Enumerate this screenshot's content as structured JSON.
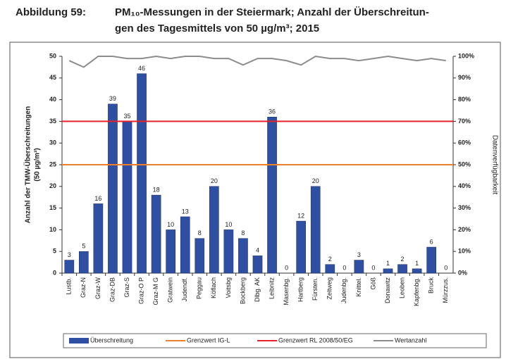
{
  "chart_data": {
    "type": "bar",
    "figure_label": "Abbildung 59:",
    "title": [
      "PM₁₀-Messungen in der Steiermark; Anzahl der Überschreitun-",
      "gen des Tagesmittels von 50 µg/m³; 2015"
    ],
    "ylabel": [
      "Anzahl der TMW-Überschreitungen",
      "(50 µg/m³)"
    ],
    "y2label": "Datenverfügbarkeit",
    "categories": [
      "Lustb.",
      "Graz-N",
      "Graz-W",
      "Graz-DB",
      "Graz-S",
      "Graz-O P",
      "Graz-M G",
      "Gratwein",
      "Judendf.",
      "Peggau",
      "Köflach",
      "Voitsbg",
      "Bockberg",
      "Dlbg. AK",
      "Leibnitz",
      "Masenbg.",
      "Hartberg",
      "Fürsten.",
      "Zeltweg",
      "Judenbg.",
      "Knittel.",
      "Göß",
      "Donawitz",
      "Leoben",
      "Kapfenbg.",
      "Bruck",
      "Mürzzus."
    ],
    "series": [
      {
        "name": "Überschreitung",
        "color": "#2f4fa2",
        "values": [
          3,
          5,
          16,
          39,
          35,
          46,
          18,
          10,
          13,
          8,
          20,
          10,
          8,
          4,
          36,
          0,
          12,
          20,
          2,
          0,
          3,
          0,
          1,
          2,
          1,
          6,
          0
        ]
      },
      {
        "name": "Wertanzahl",
        "color": "#8c8c8c",
        "axis": "y2",
        "values": [
          98,
          95,
          100,
          100,
          99,
          99,
          100,
          99,
          100,
          100,
          99,
          99,
          96,
          99,
          99,
          98,
          96,
          100,
          99,
          99,
          98,
          99,
          100,
          99,
          98,
          99,
          98
        ]
      }
    ],
    "reference_lines": [
      {
        "name": "Grenzwert IG-L",
        "color": "#f07f2a",
        "value": 25
      },
      {
        "name": "Grenzwert RL 2008/50/EG",
        "color": "#e8202a",
        "value": 35
      }
    ],
    "legend_order": [
      "series.0",
      "reference_lines.0",
      "reference_lines.1",
      "series.1"
    ],
    "ylim": [
      0,
      50
    ],
    "yticks": [
      0,
      5,
      10,
      15,
      20,
      25,
      30,
      35,
      40,
      45,
      50
    ],
    "y2lim": [
      0,
      100
    ],
    "y2ticks": [
      {
        "value": 0,
        "label": "0%"
      },
      {
        "value": 10,
        "label": "10%"
      },
      {
        "value": 20,
        "label": "20%"
      },
      {
        "value": 30,
        "label": "30%"
      },
      {
        "value": 40,
        "label": "40%"
      },
      {
        "value": 50,
        "label": "50%"
      },
      {
        "value": 60,
        "label": "60%"
      },
      {
        "value": 70,
        "label": "70%"
      },
      {
        "value": 80,
        "label": "80%"
      },
      {
        "value": 90,
        "label": "90%"
      },
      {
        "value": 100,
        "label": "100%"
      }
    ],
    "legend": "bottom"
  }
}
